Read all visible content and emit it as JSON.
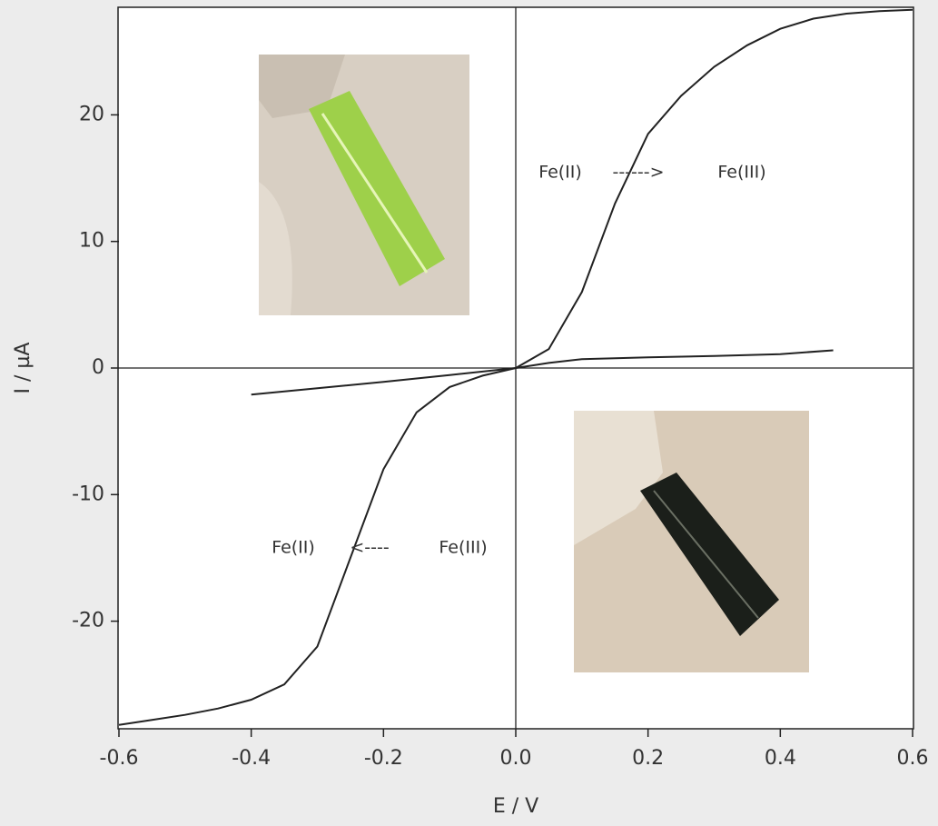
{
  "chart_data": {
    "type": "line",
    "xlabel": "E / V",
    "ylabel": "I / µA",
    "xlim": [
      -0.6,
      0.6
    ],
    "ylim": [
      -28.5,
      28.5
    ],
    "xticks": [
      -0.6,
      -0.4,
      -0.2,
      {
        "value": 0,
        "label": "0.0"
      },
      0.2,
      0.4,
      0.6
    ],
    "yticks": [
      -20,
      -10,
      0,
      10,
      20
    ],
    "zero_lines": true,
    "series": [
      {
        "color": "#222222",
        "x": [
          -0.6,
          -0.55,
          -0.5,
          -0.45,
          -0.4,
          -0.35,
          -0.3,
          -0.25,
          -0.2,
          -0.15,
          -0.1,
          -0.05,
          0,
          0.05,
          0.1,
          0.15,
          0.2,
          0.25,
          0.3,
          0.35,
          0.4,
          0.45,
          0.5,
          0.55,
          0.6
        ],
        "values": [
          -28.2,
          -27.8,
          -27.4,
          -26.9,
          -26.2,
          -25,
          -22,
          -15,
          -8,
          -3.5,
          -1.5,
          -0.6,
          0,
          1.5,
          6,
          13,
          18.5,
          21.5,
          23.8,
          25.5,
          26.8,
          27.6,
          28,
          28.2,
          28.3
        ]
      },
      {
        "color": "#222222",
        "x": [
          -0.4,
          -0.3,
          -0.2,
          -0.1,
          0,
          0.05,
          0.1,
          0.2,
          0.3,
          0.4,
          0.48
        ],
        "values": [
          -2.1,
          -1.6,
          -1.1,
          -0.55,
          0,
          0.4,
          0.7,
          0.85,
          0.95,
          1.1,
          1.4
        ]
      }
    ],
    "annotations": [
      "Fe(II)",
      "------>",
      "Fe(III)",
      "Fe(II)",
      "<----",
      "Fe(III)"
    ]
  }
}
